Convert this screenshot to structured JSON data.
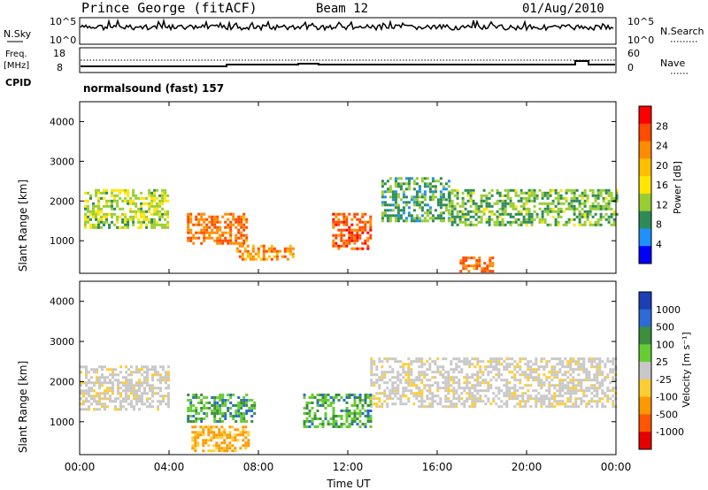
{
  "header": {
    "station": "Prince George (fitACF)",
    "beam": "Beam 12",
    "date": "01/Aug/2010"
  },
  "noise_panel": {
    "left_label": "N.Sky",
    "right_label": "N.Search",
    "left_ticks": [
      "10^5",
      "10^0"
    ],
    "right_ticks": [
      "10^5",
      "10^0"
    ]
  },
  "freq_panel": {
    "left_label_1": "Freq.",
    "left_label_2": "[MHz]",
    "left_ticks": [
      "18",
      "8"
    ],
    "right_label": "Nave",
    "right_ticks": [
      "60",
      "0"
    ],
    "cpid_label": "CPID",
    "cpid_text": "normalsound (fast) 157"
  },
  "power_panel": {
    "ylabel": "Slant Range [km]",
    "yticks": [
      "4000",
      "3000",
      "2000",
      "1000"
    ],
    "colorbar_label": "Power [dB]",
    "colorbar_ticks": [
      "28",
      "24",
      "20",
      "16",
      "12",
      "8",
      "4"
    ],
    "colorbar_colors": [
      "#ff0000",
      "#ff4a00",
      "#ff8c00",
      "#ffbf00",
      "#ffe600",
      "#9acd32",
      "#2e8b57",
      "#1e90ff",
      "#0000ff"
    ]
  },
  "velocity_panel": {
    "ylabel": "Slant Range [km]",
    "yticks": [
      "4000",
      "3000",
      "2000",
      "1000"
    ],
    "colorbar_label": "Velocity [m s⁻¹]",
    "colorbar_ticks": [
      "1000",
      "500",
      "100",
      "25",
      "-25",
      "-100",
      "-500",
      "-1000"
    ],
    "colorbar_colors": [
      "#1c3fb5",
      "#2e6bd6",
      "#3c8f3c",
      "#66cc33",
      "#c8c8c8",
      "#ffcc33",
      "#ff9900",
      "#ff5500",
      "#e60000"
    ]
  },
  "xaxis": {
    "label": "Time UT",
    "ticks": [
      "00:00",
      "04:00",
      "08:00",
      "12:00",
      "16:00",
      "20:00",
      "00:00"
    ]
  },
  "chart_data": {
    "type": "heatmap",
    "title": "Prince George (fitACF)  Beam 12  01/Aug/2010",
    "xlabel": "Time UT",
    "ylabel": "Slant Range [km]",
    "x_range_hours": [
      0,
      24
    ],
    "y_range_km": [
      180,
      4500
    ],
    "power_range_db": [
      0,
      30
    ],
    "velocity_range_ms": [
      -1000,
      1000
    ],
    "power_blobs": [
      {
        "t0": 0.2,
        "t1": 4.0,
        "r0": 1300,
        "r1": 2300,
        "level": 12
      },
      {
        "t0": 4.8,
        "t1": 7.5,
        "r0": 900,
        "r1": 1700,
        "level": 24
      },
      {
        "t0": 7.0,
        "t1": 9.5,
        "r0": 500,
        "r1": 900,
        "level": 22
      },
      {
        "t0": 11.3,
        "t1": 13.0,
        "r0": 800,
        "r1": 1700,
        "level": 26
      },
      {
        "t0": 13.5,
        "t1": 16.5,
        "r0": 1500,
        "r1": 2600,
        "level": 8
      },
      {
        "t0": 16.5,
        "t1": 24.0,
        "r0": 1400,
        "r1": 2300,
        "level": 10
      },
      {
        "t0": 17.0,
        "t1": 18.5,
        "r0": 200,
        "r1": 600,
        "level": 24
      }
    ],
    "velocity_blobs": [
      {
        "t0": 0.0,
        "t1": 4.0,
        "r0": 1300,
        "r1": 2400,
        "v": 0
      },
      {
        "t0": 4.8,
        "t1": 7.8,
        "r0": 1000,
        "r1": 1700,
        "v": 150
      },
      {
        "t0": 10.0,
        "t1": 13.0,
        "r0": 900,
        "r1": 1700,
        "v": 120
      },
      {
        "t0": 13.0,
        "t1": 24.0,
        "r0": 1400,
        "r1": 2600,
        "v": 0
      },
      {
        "t0": 5.0,
        "t1": 7.5,
        "r0": 300,
        "r1": 900,
        "v": -150
      }
    ]
  }
}
